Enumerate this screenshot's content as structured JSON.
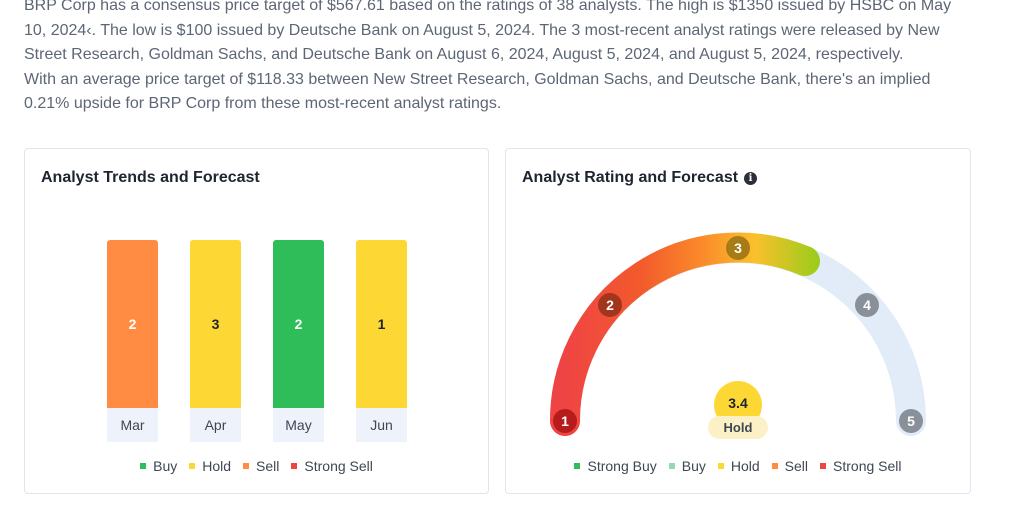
{
  "article": {
    "line1": "BRP Corp has a consensus price target of $567.61 based on the ratings of 38 analysts. The high is $1350 issued by HSBC on May",
    "line2": "10, 2024‹. The low is $100 issued by Deutsche Bank on August 5, 2024. The 3 most-recent analyst ratings were released by New",
    "line3": "Street Research, Goldman Sachs, and Deutsche Bank on August 6, 2024, August 5, 2024, and August 5, 2024, respectively.",
    "line4": "With an average price target of $118.33 between New Street Research, Goldman Sachs, and Deutsche Bank, there's an implied",
    "line5": "0.21% upside for BRP Corp from these most-recent analyst ratings."
  },
  "trends": {
    "title": "Analyst Trends and Forecast",
    "legend": [
      {
        "label": "Buy",
        "color": "#2ebd59"
      },
      {
        "label": "Hold",
        "color": "#fdd835"
      },
      {
        "label": "Sell",
        "color": "#ff8c42"
      },
      {
        "label": "Strong Sell",
        "color": "#ef4444"
      }
    ]
  },
  "rating": {
    "title": "Analyst Rating and Forecast",
    "score": "3.4",
    "label": "Hold",
    "legend": [
      {
        "label": "Strong Buy",
        "color": "#2ebd59"
      },
      {
        "label": "Buy",
        "color": "#8fdcb2"
      },
      {
        "label": "Hold",
        "color": "#fdd835"
      },
      {
        "label": "Sell",
        "color": "#ff8c42"
      },
      {
        "label": "Strong Sell",
        "color": "#ef4444"
      }
    ],
    "markers": [
      "1",
      "2",
      "3",
      "4",
      "5"
    ]
  },
  "chart_data": {
    "type": "bar",
    "title": "Analyst Trends and Forecast",
    "categories": [
      "Mar",
      "Apr",
      "May",
      "Jun"
    ],
    "values": [
      2,
      3,
      2,
      1
    ],
    "bar_ratings": [
      "Sell",
      "Hold",
      "Buy",
      "Hold"
    ],
    "bar_colors": [
      "#ff8c42",
      "#fdd835",
      "#2ebd59",
      "#fdd835"
    ],
    "label_colors": [
      "#ffffff",
      "#1e2430",
      "#ffffff",
      "#1e2430"
    ]
  }
}
